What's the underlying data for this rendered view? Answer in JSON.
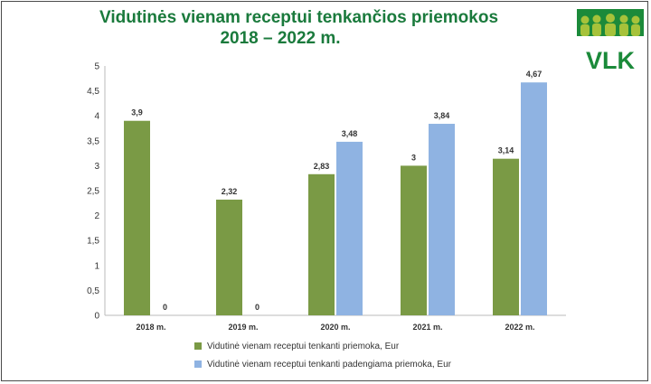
{
  "title_line1": "Vidutinės vienam receptui tenkančios priemokos",
  "title_line2": "2018 – 2022 m.",
  "logo": {
    "text": "VLK",
    "color": "#1b8a3a",
    "accent": "#a6c23a"
  },
  "colors": {
    "series1": "#7a9a45",
    "series2": "#8fb3e2",
    "title": "#1a7a3c"
  },
  "chart_data": {
    "type": "bar",
    "categories": [
      "2018 m.",
      "2019 m.",
      "2020 m.",
      "2021 m.",
      "2022 m."
    ],
    "series": [
      {
        "name": "Vidutinė vienam receptui tenkanti priemoka, Eur",
        "values": [
          3.9,
          2.32,
          2.83,
          3,
          3.14
        ],
        "labels": [
          "3,9",
          "2,32",
          "2,83",
          "3",
          "3,14"
        ]
      },
      {
        "name": "Vidutinė vienam receptui tenkanti padengiama priemoka, Eur",
        "values": [
          0,
          0,
          3.48,
          3.84,
          4.67
        ],
        "labels": [
          "0",
          "0",
          "3,48",
          "3,84",
          "4,67"
        ]
      }
    ],
    "ylim": [
      0,
      5
    ],
    "yticks": [
      "0",
      "0,5",
      "1",
      "1,5",
      "2",
      "2,5",
      "3",
      "3,5",
      "4",
      "4,5",
      "5"
    ],
    "legend_position": "bottom",
    "grid": false
  }
}
